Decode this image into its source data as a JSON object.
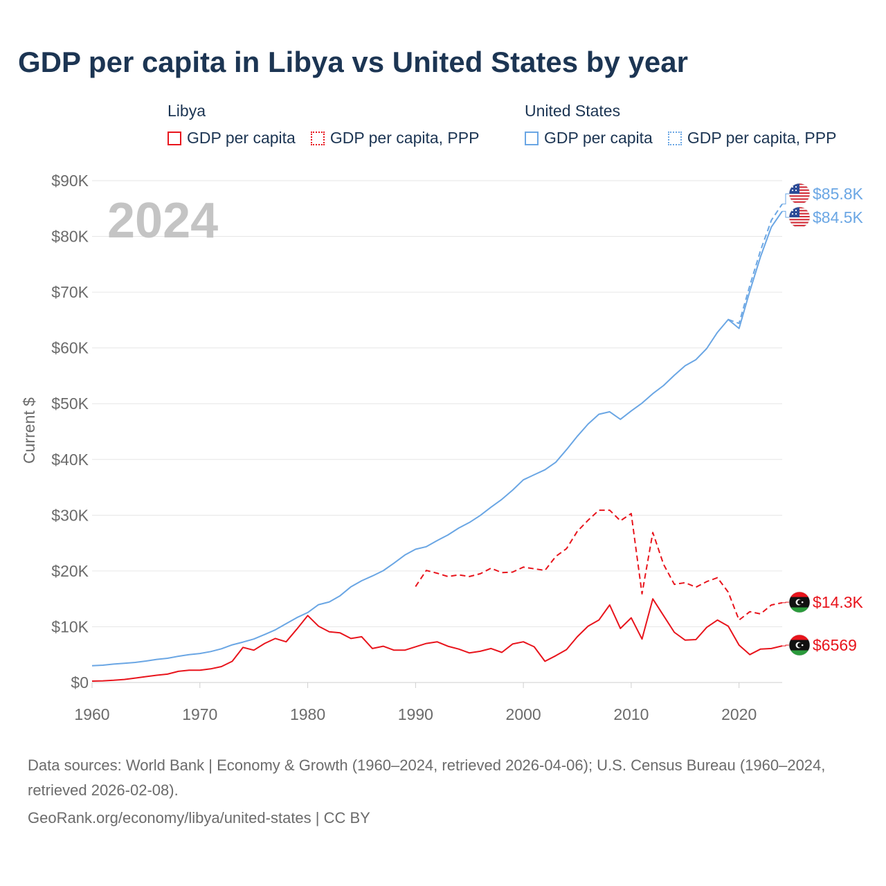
{
  "title": "GDP per capita in Libya vs United States by year",
  "legend": {
    "groups": [
      {
        "name": "Libya",
        "color": "#e8141c",
        "items": [
          {
            "label": "GDP per capita",
            "style": "solid"
          },
          {
            "label": "GDP per capita, PPP",
            "style": "dotted"
          }
        ]
      },
      {
        "name": "United States",
        "color": "#6aa6e4",
        "items": [
          {
            "label": "GDP per capita",
            "style": "solid"
          },
          {
            "label": "GDP per capita, PPP",
            "style": "dotted"
          }
        ]
      }
    ]
  },
  "chart_data": {
    "type": "line",
    "title": "GDP per capita in Libya vs United States by year",
    "xlabel": "",
    "ylabel": "Current $",
    "xlim": [
      1960,
      2024
    ],
    "ylim": [
      0,
      90000
    ],
    "x_ticks": [
      {
        "value": 1960,
        "label": "1960"
      },
      {
        "value": 1970,
        "label": "1970"
      },
      {
        "value": 1980,
        "label": "1980"
      },
      {
        "value": 1990,
        "label": "1990"
      },
      {
        "value": 2000,
        "label": "2000"
      },
      {
        "value": 2010,
        "label": "2010"
      },
      {
        "value": 2020,
        "label": "2020"
      }
    ],
    "y_ticks": [
      {
        "value": 0,
        "label": "$0"
      },
      {
        "value": 10000,
        "label": "$10K"
      },
      {
        "value": 20000,
        "label": "$20K"
      },
      {
        "value": 30000,
        "label": "$30K"
      },
      {
        "value": 40000,
        "label": "$40K"
      },
      {
        "value": 50000,
        "label": "$50K"
      },
      {
        "value": 60000,
        "label": "$60K"
      },
      {
        "value": 70000,
        "label": "$70K"
      },
      {
        "value": 80000,
        "label": "$80K"
      },
      {
        "value": 90000,
        "label": "$90K"
      }
    ],
    "year_label": "2024",
    "series": [
      {
        "name": "United States GDP per capita",
        "country": "United States",
        "color": "#6aa6e4",
        "dash": "solid",
        "end_label": "$84.5K",
        "flag": "us",
        "start_year": 1960,
        "values": [
          3000,
          3100,
          3300,
          3450,
          3600,
          3850,
          4150,
          4350,
          4700,
          5000,
          5200,
          5550,
          6050,
          6750,
          7250,
          7800,
          8600,
          9450,
          10550,
          11650,
          12550,
          13950,
          14450,
          15550,
          17150,
          18250,
          19100,
          20050,
          21400,
          22850,
          23900,
          24350,
          25450,
          26450,
          27700,
          28700,
          29950,
          31450,
          32850,
          34500,
          36350,
          37250,
          38150,
          39500,
          41750,
          44150,
          46350,
          48100,
          48550,
          47200,
          48700,
          50100,
          51800,
          53250,
          55100,
          56800,
          57900,
          59900,
          62800,
          65100,
          63500,
          70200,
          76400,
          81700,
          84500
        ]
      },
      {
        "name": "United States GDP per capita, PPP",
        "country": "United States",
        "color": "#6aa6e4",
        "dash": "dashed",
        "end_label": "$85.8K",
        "flag": "us",
        "start_year": 2019,
        "values": [
          65100,
          64400,
          71200,
          77500,
          82900,
          85800
        ]
      },
      {
        "name": "Libya GDP per capita",
        "country": "Libya",
        "color": "#e8141c",
        "dash": "solid",
        "end_label": "$6569",
        "flag": "libya",
        "start_year": 1960,
        "values": [
          250,
          300,
          400,
          550,
          800,
          1050,
          1300,
          1500,
          2000,
          2200,
          2200,
          2450,
          2850,
          3800,
          6300,
          5800,
          7000,
          7900,
          7300,
          9600,
          12000,
          10100,
          9100,
          8900,
          7900,
          8200,
          6100,
          6500,
          5800,
          5800,
          6400,
          7000,
          7300,
          6500,
          6000,
          5300,
          5600,
          6100,
          5400,
          6900,
          7300,
          6400,
          3800,
          4800,
          5900,
          8200,
          10100,
          11200,
          13900,
          9700,
          11600,
          7800,
          15000,
          12000,
          9000,
          7600,
          7700,
          9900,
          11200,
          10100,
          6700,
          5000,
          6000,
          6100,
          6569
        ]
      },
      {
        "name": "Libya GDP per capita, PPP",
        "country": "Libya",
        "color": "#e8141c",
        "dash": "dashed",
        "end_label": "$14.3K",
        "flag": "libya",
        "start_year": 1990,
        "values": [
          17200,
          20100,
          19600,
          19000,
          19300,
          19000,
          19500,
          20500,
          19700,
          19800,
          20700,
          20400,
          20100,
          22600,
          24000,
          27100,
          29100,
          30900,
          30900,
          29000,
          30300,
          15900,
          26900,
          21200,
          17600,
          17900,
          17100,
          18100,
          18800,
          16200,
          11200,
          12700,
          12300,
          13900,
          14300
        ]
      }
    ]
  },
  "footer": {
    "source": "Data sources: World Bank | Economy & Growth (1960–2024, retrieved 2026-04-06); U.S. Census Bureau (1960–2024, retrieved 2026-02-08).",
    "credit": "GeoRank.org/economy/libya/united-states | CC BY"
  }
}
